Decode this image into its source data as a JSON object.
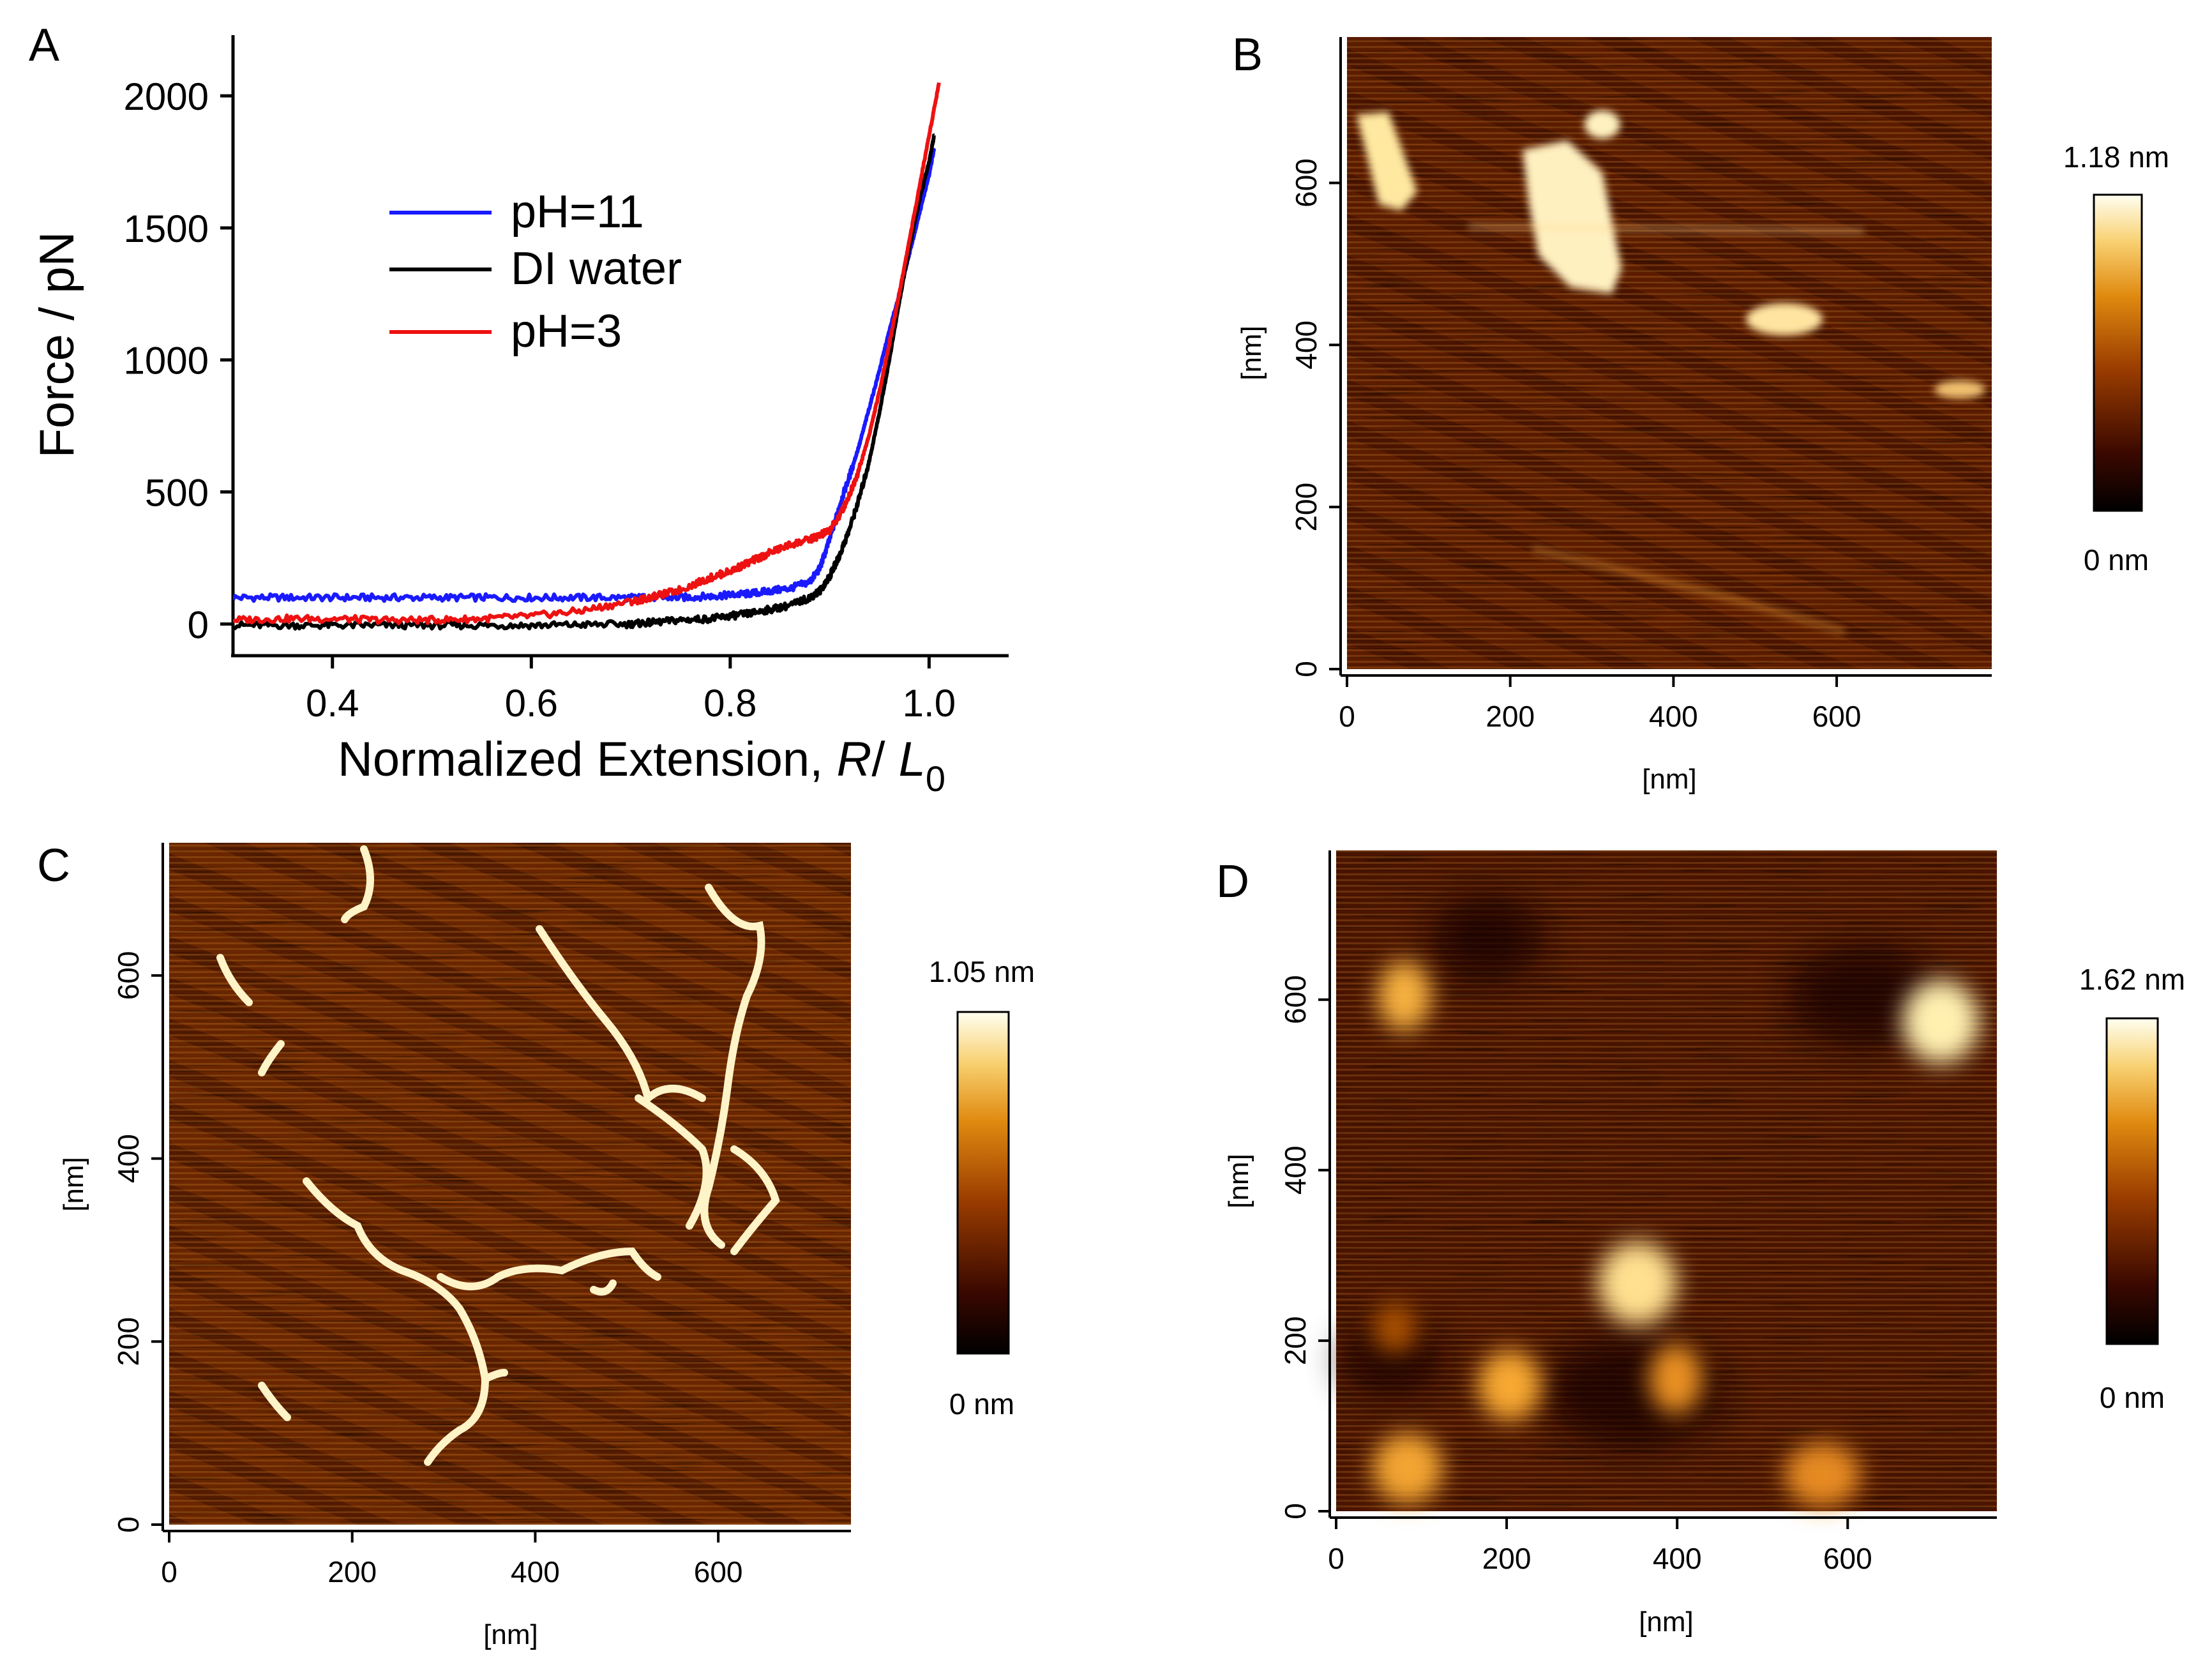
{
  "panels": {
    "A": {
      "letter": "A"
    },
    "B": {
      "letter": "B"
    },
    "C": {
      "letter": "C"
    },
    "D": {
      "letter": "D"
    }
  },
  "colors": {
    "ph11": "#1a1aff",
    "di_water": "#000000",
    "ph3": "#ee1111",
    "afm_low": "#000000",
    "afm_mid": "#b85a00",
    "afm_high": "#fffff0"
  },
  "chart_data": [
    {
      "panel": "A",
      "type": "line",
      "xlabel_main": "Normalized Extension, ",
      "xlabel_R": "R",
      "xlabel_slash": "/ ",
      "xlabel_L": "L",
      "xlabel_sub": "0",
      "ylabel": "Force / pN",
      "xlim": [
        0.3,
        1.08
      ],
      "ylim": [
        -120,
        2230
      ],
      "xticks": [
        0.4,
        0.6,
        0.8,
        1.0
      ],
      "xtick_labels": [
        "0.4",
        "0.6",
        "0.8",
        "1.0"
      ],
      "yticks": [
        0,
        500,
        1000,
        1500,
        2000
      ],
      "ytick_labels": [
        "0",
        "500",
        "1000",
        "1500",
        "2000"
      ],
      "legend_position": "upper-center",
      "series": [
        {
          "name": "pH=11",
          "color": "#1a1aff",
          "x": [
            0.3,
            0.35,
            0.4,
            0.45,
            0.5,
            0.55,
            0.6,
            0.65,
            0.7,
            0.72,
            0.75,
            0.78,
            0.8,
            0.82,
            0.84,
            0.86,
            0.88,
            0.89,
            0.9,
            0.91,
            0.92,
            0.93,
            0.94,
            0.95,
            0.96,
            0.97,
            0.98,
            0.99,
            1.0,
            1.005
          ],
          "y": [
            100,
            100,
            100,
            100,
            100,
            100,
            100,
            100,
            100,
            100,
            100,
            105,
            110,
            115,
            125,
            135,
            160,
            210,
            320,
            450,
            560,
            680,
            820,
            960,
            1110,
            1250,
            1400,
            1550,
            1700,
            1800
          ]
        },
        {
          "name": "DI water",
          "color": "#000000",
          "x": [
            0.3,
            0.35,
            0.4,
            0.45,
            0.5,
            0.55,
            0.6,
            0.65,
            0.7,
            0.72,
            0.75,
            0.78,
            0.8,
            0.82,
            0.84,
            0.86,
            0.88,
            0.89,
            0.9,
            0.91,
            0.92,
            0.93,
            0.94,
            0.95,
            0.96,
            0.97,
            0.98,
            0.99,
            1.0,
            1.005
          ],
          "y": [
            -5,
            -5,
            -5,
            -5,
            -5,
            -5,
            -5,
            -3,
            0,
            5,
            15,
            20,
            30,
            40,
            55,
            70,
            100,
            125,
            180,
            260,
            360,
            480,
            620,
            800,
            1000,
            1220,
            1420,
            1600,
            1750,
            1850
          ]
        },
        {
          "name": "pH=3",
          "color": "#ee1111",
          "x": [
            0.3,
            0.35,
            0.4,
            0.45,
            0.5,
            0.55,
            0.6,
            0.65,
            0.7,
            0.72,
            0.75,
            0.78,
            0.8,
            0.82,
            0.84,
            0.86,
            0.88,
            0.89,
            0.9,
            0.91,
            0.92,
            0.93,
            0.94,
            0.95,
            0.96,
            0.97,
            0.98,
            0.99,
            1.0,
            1.01
          ],
          "y": [
            15,
            20,
            20,
            15,
            15,
            20,
            30,
            50,
            85,
            100,
            130,
            175,
            200,
            235,
            270,
            300,
            320,
            335,
            355,
            410,
            490,
            590,
            720,
            880,
            1060,
            1250,
            1450,
            1650,
            1850,
            2050
          ]
        }
      ]
    },
    {
      "panel": "B",
      "type": "heatmap",
      "xlabel": "[nm]",
      "ylabel": "[nm]",
      "xlim": [
        0,
        790
      ],
      "ylim": [
        0,
        780
      ],
      "xtick_labels": [
        "0",
        "200",
        "400",
        "600"
      ],
      "ytick_labels": [
        "0",
        "200",
        "400",
        "600"
      ],
      "colorbar_max_label": "1.18 nm",
      "colorbar_min_label": "0 nm"
    },
    {
      "panel": "C",
      "type": "heatmap",
      "xlabel": "[nm]",
      "ylabel": "[nm]",
      "xlim": [
        0,
        745
      ],
      "ylim": [
        0,
        745
      ],
      "xtick_labels": [
        "0",
        "200",
        "400",
        "600"
      ],
      "ytick_labels": [
        "0",
        "200",
        "400",
        "600"
      ],
      "colorbar_max_label": "1.05 nm",
      "colorbar_min_label": "0 nm"
    },
    {
      "panel": "D",
      "type": "heatmap",
      "xlabel": "[nm]",
      "ylabel": "[nm]",
      "xlim": [
        0,
        775
      ],
      "ylim": [
        0,
        775
      ],
      "xtick_labels": [
        "0",
        "200",
        "400",
        "600"
      ],
      "ytick_labels": [
        "0",
        "200",
        "400",
        "600"
      ],
      "colorbar_max_label": "1.62 nm",
      "colorbar_min_label": "0 nm"
    }
  ]
}
